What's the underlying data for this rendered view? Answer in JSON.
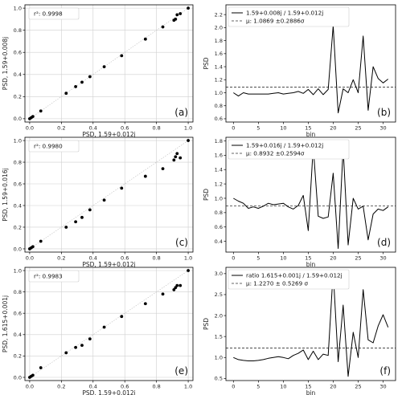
{
  "chart_data": [
    {
      "type": "scatter",
      "panel_label": "(a)",
      "xlabel": "PSD, 1.59+0.012j",
      "ylabel": "PSD, 1.59+0.008j",
      "legend": "r²: 0.9998",
      "xlim": [
        -0.03,
        1.03
      ],
      "ylim": [
        -0.03,
        1.03
      ],
      "xticks": [
        "0.0",
        "0.2",
        "0.4",
        "0.6",
        "0.8",
        "1.0"
      ],
      "yticks": [
        "0.0",
        "0.2",
        "0.4",
        "0.6",
        "0.8",
        "1.0"
      ],
      "grid": true,
      "legend_position": "top-left",
      "x": [
        0.0,
        0.01,
        0.02,
        0.07,
        0.23,
        0.29,
        0.33,
        0.38,
        0.47,
        0.58,
        0.73,
        0.84,
        0.91,
        0.92,
        0.93,
        0.95,
        1.0
      ],
      "y": [
        0.0,
        0.01,
        0.02,
        0.07,
        0.23,
        0.29,
        0.33,
        0.38,
        0.47,
        0.57,
        0.72,
        0.83,
        0.89,
        0.9,
        0.94,
        0.95,
        1.0
      ]
    },
    {
      "type": "line",
      "panel_label": "(b)",
      "xlabel": "bin",
      "ylabel": "PSD",
      "xlim": [
        -1.5,
        32.5
      ],
      "ylim": [
        0.55,
        2.35
      ],
      "xticks": [
        "0",
        "5",
        "10",
        "15",
        "20",
        "25",
        "30"
      ],
      "yticks": [
        "0.6",
        "0.8",
        "1.0",
        "1.2",
        "1.4",
        "1.6",
        "1.8",
        "2.0",
        "2.2"
      ],
      "legend_position": "top-left",
      "series": [
        {
          "name": "1.59+0.008j / 1.59+0.012j",
          "style": "solid",
          "x": [
            0,
            1,
            2,
            3,
            4,
            5,
            6,
            7,
            8,
            9,
            10,
            11,
            12,
            13,
            14,
            15,
            16,
            17,
            18,
            19,
            20,
            21,
            22,
            23,
            24,
            25,
            26,
            27,
            28,
            29,
            30,
            31
          ],
          "y": [
            1.0,
            0.95,
            1.0,
            0.98,
            0.98,
            0.98,
            0.98,
            0.98,
            0.99,
            1.0,
            0.98,
            0.99,
            1.0,
            1.02,
            0.99,
            1.05,
            0.97,
            1.06,
            0.97,
            1.05,
            2.03,
            0.69,
            1.06,
            1.0,
            1.2,
            1.0,
            1.87,
            0.73,
            1.4,
            1.22,
            1.15,
            1.21
          ]
        },
        {
          "name": "μ: 1.0869 ±0.2886σ",
          "style": "dashed",
          "constant": 1.0869
        }
      ]
    },
    {
      "type": "scatter",
      "panel_label": "(c)",
      "xlabel": "PSD, 1.59+0.012j",
      "ylabel": "PSD, 1.59+0.016j",
      "legend": "r²: 0.9980",
      "xlim": [
        -0.03,
        1.03
      ],
      "ylim": [
        -0.03,
        1.03
      ],
      "xticks": [
        "0.0",
        "0.2",
        "0.4",
        "0.6",
        "0.8",
        "1.0"
      ],
      "yticks": [
        "0.0",
        "0.2",
        "0.4",
        "0.6",
        "0.8",
        "1.0"
      ],
      "grid": true,
      "legend_position": "top-left",
      "x": [
        0.0,
        0.01,
        0.02,
        0.07,
        0.23,
        0.29,
        0.33,
        0.38,
        0.47,
        0.58,
        0.73,
        0.84,
        0.91,
        0.92,
        0.93,
        0.95,
        1.0
      ],
      "y": [
        0.0,
        0.01,
        0.02,
        0.07,
        0.2,
        0.25,
        0.29,
        0.36,
        0.45,
        0.56,
        0.67,
        0.74,
        0.82,
        0.85,
        0.88,
        0.84,
        1.0
      ]
    },
    {
      "type": "line",
      "panel_label": "(d)",
      "xlabel": "bin",
      "ylabel": "PSD",
      "xlim": [
        -1.5,
        32.5
      ],
      "ylim": [
        0.25,
        1.85
      ],
      "xticks": [
        "0",
        "5",
        "10",
        "15",
        "20",
        "25",
        "30"
      ],
      "yticks": [
        "0.4",
        "0.6",
        "0.8",
        "1.0",
        "1.2",
        "1.4",
        "1.6",
        "1.8"
      ],
      "legend_position": "top-left",
      "series": [
        {
          "name": "1.59+0.016j / 1.59+0.012j",
          "style": "solid",
          "x": [
            0,
            1,
            2,
            3,
            4,
            5,
            6,
            7,
            8,
            9,
            10,
            11,
            12,
            13,
            14,
            15,
            16,
            17,
            18,
            19,
            20,
            21,
            22,
            23,
            24,
            25,
            26,
            27,
            28,
            29,
            30,
            31
          ],
          "y": [
            1.0,
            0.96,
            0.93,
            0.86,
            0.88,
            0.86,
            0.89,
            0.93,
            0.91,
            0.92,
            0.93,
            0.88,
            0.85,
            0.9,
            1.04,
            0.55,
            1.72,
            0.75,
            0.72,
            0.74,
            1.35,
            0.3,
            1.7,
            0.35,
            1.0,
            0.85,
            0.89,
            0.42,
            0.78,
            0.85,
            0.83,
            0.88
          ]
        },
        {
          "name": "μ: 0.8932 ±0.2594σ",
          "style": "dashed",
          "constant": 0.8932
        }
      ]
    },
    {
      "type": "scatter",
      "panel_label": "(e)",
      "xlabel": "PSD, 1.59+0.012j",
      "ylabel": "PSD, 1.615+0.001j",
      "legend": "r²: 0.9983",
      "xlim": [
        -0.03,
        1.03
      ],
      "ylim": [
        -0.03,
        1.03
      ],
      "xticks": [
        "0.0",
        "0.2",
        "0.4",
        "0.6",
        "0.8",
        "1.0"
      ],
      "yticks": [
        "0.0",
        "0.2",
        "0.4",
        "0.6",
        "0.8",
        "1.0"
      ],
      "grid": true,
      "legend_position": "top-left",
      "x": [
        0.0,
        0.01,
        0.02,
        0.07,
        0.23,
        0.29,
        0.33,
        0.38,
        0.47,
        0.58,
        0.73,
        0.84,
        0.91,
        0.92,
        0.93,
        0.95,
        1.0
      ],
      "y": [
        0.0,
        0.01,
        0.02,
        0.09,
        0.23,
        0.28,
        0.3,
        0.36,
        0.47,
        0.57,
        0.69,
        0.78,
        0.82,
        0.84,
        0.86,
        0.86,
        1.0
      ]
    },
    {
      "type": "line",
      "panel_label": "(f)",
      "xlabel": "bin",
      "ylabel": "PSD",
      "xlim": [
        -1.5,
        32.5
      ],
      "ylim": [
        0.45,
        3.15
      ],
      "xticks": [
        "0",
        "5",
        "10",
        "15",
        "20",
        "25",
        "30"
      ],
      "yticks": [
        "0.5",
        "1.0",
        "1.5",
        "2.0",
        "2.5",
        "3.0"
      ],
      "legend_position": "top-left",
      "series": [
        {
          "name": "ratio 1.615+0.001j / 1.59+0.012j",
          "style": "solid",
          "x": [
            0,
            1,
            2,
            3,
            4,
            5,
            6,
            7,
            8,
            9,
            10,
            11,
            12,
            13,
            14,
            15,
            16,
            17,
            18,
            19,
            20,
            21,
            22,
            23,
            24,
            25,
            26,
            27,
            28,
            29,
            30,
            31
          ],
          "y": [
            1.0,
            0.95,
            0.93,
            0.92,
            0.92,
            0.93,
            0.95,
            0.98,
            1.0,
            1.02,
            1.0,
            0.97,
            1.05,
            1.1,
            1.18,
            0.95,
            1.15,
            0.95,
            1.08,
            1.05,
            3.05,
            0.9,
            2.25,
            0.55,
            1.6,
            1.0,
            2.62,
            1.42,
            1.35,
            1.75,
            2.02,
            1.72
          ]
        },
        {
          "name": "μ: 1.2270 ± 0.5269 σ",
          "style": "dashed",
          "constant": 1.227
        }
      ]
    }
  ]
}
